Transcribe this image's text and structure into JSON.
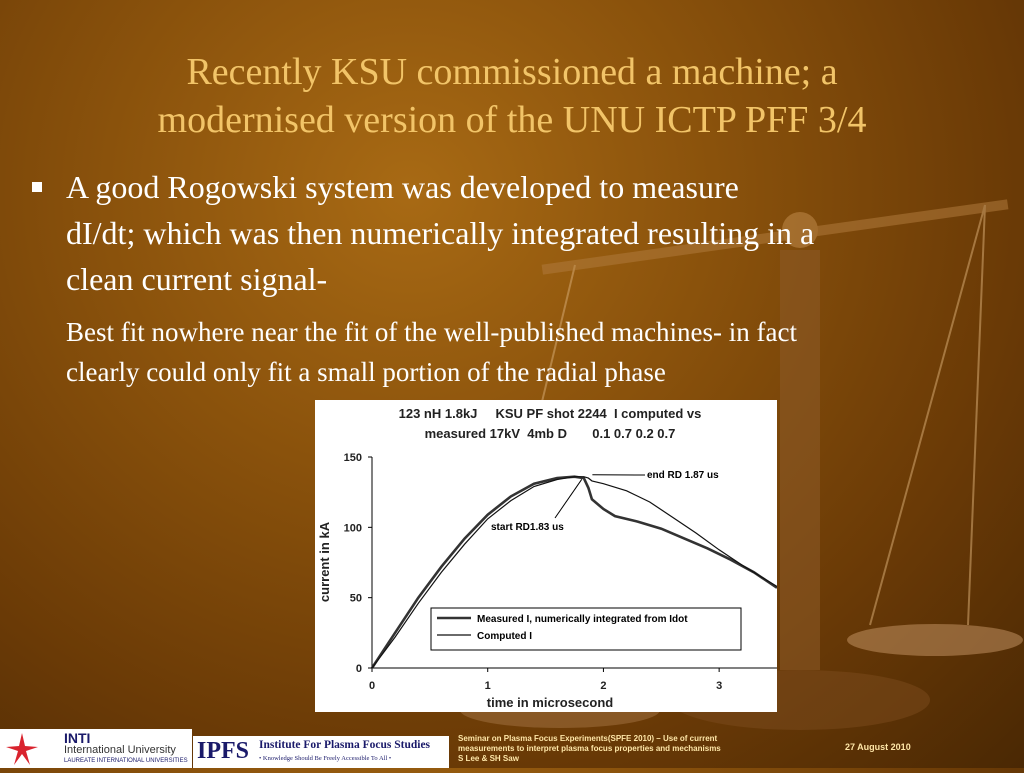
{
  "slide": {
    "title_lines": [
      "Recently KSU commissioned a machine; a",
      "modernised version of the UNU ICTP PFF 3/4"
    ],
    "bullet_lines": [
      "A good Rogowski system was developed to measure",
      "dI/dt; which was then numerically integrated resulting in a",
      "clean current signal-"
    ],
    "sub_lines": [
      "Best fit nowhere near the fit of the well-published machines- in fact",
      "clearly could only fit a small portion of the radial phase"
    ]
  },
  "chart_data": {
    "type": "line",
    "title_lines": [
      "123 nH 1.8kJ     KSU PF shot 2244  I computed vs",
      "measured 17kV  4mb D       0.1 0.7 0.2 0.7"
    ],
    "xlabel": "time in microsecond",
    "ylabel": "current in kA",
    "xlim": [
      0,
      3.5
    ],
    "ylim": [
      0,
      150
    ],
    "xticks": [
      0,
      1,
      2,
      3
    ],
    "yticks": [
      0,
      50,
      100,
      150
    ],
    "legend_position": "lower-right",
    "annotations": [
      {
        "text": "end RD 1.87 us",
        "x": 1.87,
        "y": 136
      },
      {
        "text": "start RD1.83 us",
        "x": 1.83,
        "y": 137
      }
    ],
    "series": [
      {
        "name": "Measured I, numerically integrated from Idot",
        "x": [
          0,
          0.2,
          0.4,
          0.6,
          0.8,
          1.0,
          1.2,
          1.4,
          1.6,
          1.75,
          1.83,
          1.87,
          1.9,
          2.0,
          2.1,
          2.3,
          2.5,
          2.7,
          2.9,
          3.1,
          3.3,
          3.5
        ],
        "y": [
          0,
          25,
          50,
          72,
          92,
          109,
          122,
          131,
          135,
          136,
          135,
          128,
          120,
          113,
          108,
          104,
          99,
          92,
          85,
          77,
          68,
          57
        ]
      },
      {
        "name": "Computed I",
        "x": [
          0,
          0.2,
          0.4,
          0.6,
          0.8,
          1.0,
          1.2,
          1.4,
          1.6,
          1.75,
          1.83,
          1.87,
          1.9,
          2.0,
          2.2,
          2.4,
          2.6,
          2.8,
          3.0,
          3.2,
          3.4,
          3.5
        ],
        "y": [
          0,
          22,
          46,
          68,
          88,
          106,
          119,
          129,
          134,
          136,
          136,
          135,
          133,
          131,
          126,
          118,
          107,
          96,
          84,
          73,
          63,
          58
        ]
      }
    ]
  },
  "footer": {
    "inti_logo_text": "INTI",
    "inti_university": "International University",
    "inti_laureate": "LAUREATE INTERNATIONAL UNIVERSITIES",
    "ipfs_abbr": "IPFS",
    "ipfs_name": "Institute For Plasma Focus Studies",
    "ipfs_motto": "• Knowledge Should Be Freely Accessible To All •",
    "seminar_lines": [
      "Seminar on Plasma Focus Experiments(SPFE 2010) – Use of current",
      "measurements to interpret plasma focus properties and mechanisms",
      "S Lee & SH Saw"
    ],
    "date": "27 August 2010"
  },
  "colors": {
    "title": "#f2c468",
    "body_text": "#ffffff",
    "footer_text": "#ffe7a8",
    "inti_red": "#d9232e"
  }
}
